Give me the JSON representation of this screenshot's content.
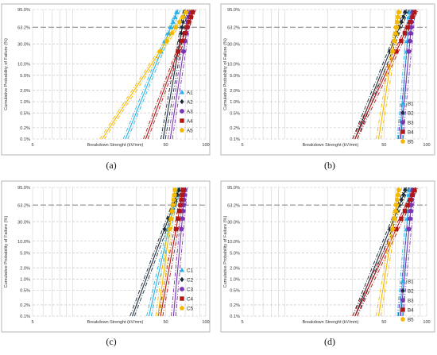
{
  "figure": {
    "panels": [
      {
        "caption": "(a)"
      },
      {
        "caption": "(b)"
      },
      {
        "caption": "(c)"
      },
      {
        "caption": "(d)"
      }
    ]
  },
  "chart_data": [
    {
      "type": "line",
      "scale": "weibull-probability",
      "title": "",
      "xlabel": "Breakdown  Strenght (kV/mm)",
      "ylabel": "Cumulative Probability of Failure (%)",
      "x_ticks": [
        "5",
        "50",
        "100"
      ],
      "y_ticks": [
        "95.0%",
        "63.2%",
        "30.0%",
        "10.0%",
        "5.0%",
        "2.0%",
        "1.0%",
        "0.5%",
        "0.2%",
        "0.1%"
      ],
      "xlim": [
        5,
        100
      ],
      "ylim": [
        "0.1%",
        "95.0%"
      ],
      "grid": true,
      "reference_line_y": "63.2%",
      "legend_position": "right",
      "series": [
        {
          "name": "A1",
          "marker": "triangle",
          "color": "#29b3e8",
          "x_at_0_1": 24,
          "x_at_95": 62
        },
        {
          "name": "A2",
          "marker": "diamond",
          "color": "#1b2a3a",
          "x_at_0_1": 46,
          "x_at_95": 70
        },
        {
          "name": "A3",
          "marker": "circle",
          "color": "#7a35b0",
          "x_at_0_1": 52,
          "x_at_95": 76
        },
        {
          "name": "A4",
          "marker": "square",
          "color": "#b01818",
          "x_at_0_1": 34,
          "x_at_95": 81
        },
        {
          "name": "A5",
          "marker": "pentagon",
          "color": "#f5b800",
          "x_at_0_1": 16,
          "x_at_95": 73
        }
      ]
    },
    {
      "type": "line",
      "scale": "weibull-probability",
      "title": "",
      "xlabel": "Breakdown  Strenght (kV/mm)",
      "ylabel": "Cumulative Probability of Failure (%)",
      "x_ticks": [
        "5",
        "50",
        "100"
      ],
      "y_ticks": [
        "95.0%",
        "63.2%",
        "30.0%",
        "10.0%",
        "5.0%",
        "2.0%",
        "1.0%",
        "0.5%",
        "0.2%",
        "0.1%"
      ],
      "xlim": [
        5,
        100
      ],
      "ylim": [
        "0.1%",
        "95.0%"
      ],
      "grid": true,
      "reference_line_y": "63.2%",
      "legend_position": "right",
      "series": [
        {
          "name": "B1",
          "marker": "triangle",
          "color": "#29b3e8",
          "x_at_0_1": 62,
          "x_at_95": 76
        },
        {
          "name": "B2",
          "marker": "diamond",
          "color": "#1b2a3a",
          "x_at_0_1": 30,
          "x_at_95": 72
        },
        {
          "name": "B3",
          "marker": "circle",
          "color": "#7a35b0",
          "x_at_0_1": 63,
          "x_at_95": 80
        },
        {
          "name": "B4",
          "marker": "square",
          "color": "#b01818",
          "x_at_0_1": 30,
          "x_at_95": 84
        },
        {
          "name": "B5",
          "marker": "pentagon",
          "color": "#f5b800",
          "x_at_0_1": 44,
          "x_at_95": 64
        }
      ]
    },
    {
      "type": "line",
      "scale": "weibull-probability",
      "title": "",
      "xlabel": "Breakdown  Strenght (kV/mm)",
      "ylabel": "Cumulative Probability of Failure (%)",
      "x_ticks": [
        "5",
        "50",
        "100"
      ],
      "y_ticks": [
        "95.0%",
        "63.2%",
        "30.0%",
        "10.0%",
        "5.0%",
        "2.0%",
        "1.0%",
        "0.5%",
        "0.2%",
        "0.1%"
      ],
      "xlim": [
        5,
        100
      ],
      "ylim": [
        "0.1%",
        "95.0%"
      ],
      "grid": true,
      "reference_line_y": "63.2%",
      "legend_position": "right",
      "series": [
        {
          "name": "C1",
          "marker": "triangle",
          "color": "#29b3e8",
          "x_at_0_1": 36,
          "x_at_95": 62
        },
        {
          "name": "C2",
          "marker": "diamond",
          "color": "#1b2a3a",
          "x_at_0_1": 27,
          "x_at_95": 64
        },
        {
          "name": "C3",
          "marker": "circle",
          "color": "#7a35b0",
          "x_at_0_1": 55,
          "x_at_95": 70
        },
        {
          "name": "C4",
          "marker": "square",
          "color": "#b01818",
          "x_at_0_1": 44,
          "x_at_95": 68
        },
        {
          "name": "C5",
          "marker": "pentagon",
          "color": "#f5b800",
          "x_at_0_1": 42,
          "x_at_95": 59
        }
      ]
    },
    {
      "type": "line",
      "scale": "weibull-probability",
      "title": "",
      "xlabel": "Breakdown  Strenght (kV/mm)",
      "ylabel": "Cumulative Probability of Failure (%)",
      "x_ticks": [
        "5",
        "50",
        "100"
      ],
      "y_ticks": [
        "95.0%",
        "63.2%",
        "30.0%",
        "10.0%",
        "5.0%",
        "2.0%",
        "1.0%",
        "0.5%",
        "0.2%",
        "0.1%"
      ],
      "xlim": [
        5,
        100
      ],
      "ylim": [
        "0.1%",
        "95.0%"
      ],
      "grid": true,
      "reference_line_y": "63.2%",
      "legend_position": "right",
      "series": [
        {
          "name": "B1",
          "marker": "triangle",
          "color": "#29b3e8",
          "x_at_0_1": 62,
          "x_at_95": 76
        },
        {
          "name": "B2",
          "marker": "diamond",
          "color": "#1b2a3a",
          "x_at_0_1": 30,
          "x_at_95": 72
        },
        {
          "name": "B3",
          "marker": "circle",
          "color": "#7a35b0",
          "x_at_0_1": 63,
          "x_at_95": 80
        },
        {
          "name": "B4",
          "marker": "square",
          "color": "#b01818",
          "x_at_0_1": 30,
          "x_at_95": 84
        },
        {
          "name": "B5",
          "marker": "pentagon",
          "color": "#f5b800",
          "x_at_0_1": 44,
          "x_at_95": 64
        }
      ]
    }
  ]
}
